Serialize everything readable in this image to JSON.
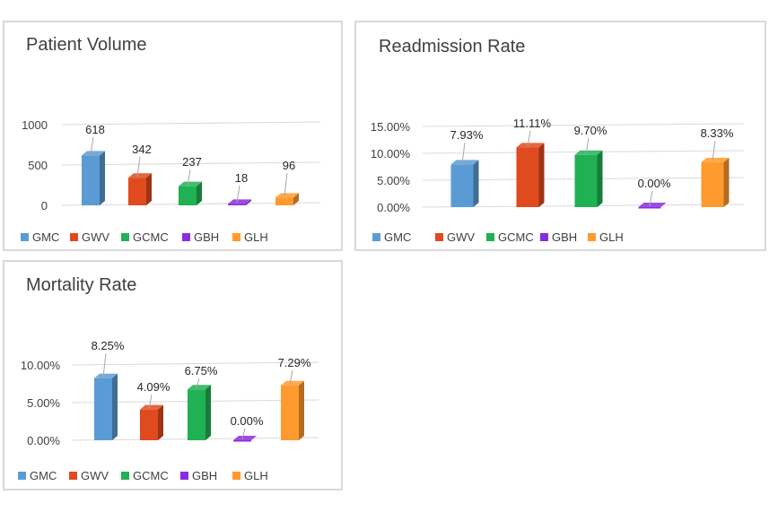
{
  "chart_data": [
    {
      "type": "bar",
      "title": "Patient Volume",
      "categories": [
        "GMC",
        "GWV",
        "GCMC",
        "GBH",
        "GLH"
      ],
      "values": [
        618,
        342,
        237,
        18,
        96
      ],
      "data_labels": [
        "618",
        "342",
        "237",
        "18",
        "96"
      ],
      "yticks": [
        "1000",
        "500",
        "0"
      ],
      "ylim": [
        0,
        1000
      ],
      "grid": true,
      "legend": "bottom"
    },
    {
      "type": "bar",
      "title": "Readmission Rate",
      "categories": [
        "GMC",
        "GWV",
        "GCMC",
        "GBH",
        "GLH"
      ],
      "values": [
        7.93,
        11.11,
        9.7,
        0.0,
        8.33
      ],
      "data_labels": [
        "7.93%",
        "11.11%",
        "9.70%",
        "0.00%",
        "8.33%"
      ],
      "yticks": [
        "15.00%",
        "10.00%",
        "5.00%",
        "0.00%"
      ],
      "ylim": [
        0,
        15
      ],
      "grid": true,
      "legend": "bottom"
    },
    {
      "type": "bar",
      "title": "Mortality Rate",
      "categories": [
        "GMC",
        "GWV",
        "GCMC",
        "GBH",
        "GLH"
      ],
      "values": [
        8.25,
        4.09,
        6.75,
        0.0,
        7.29
      ],
      "data_labels": [
        "8.25%",
        "4.09%",
        "6.75%",
        "0.00%",
        "7.29%"
      ],
      "yticks": [
        "10.00%",
        "5.00%",
        "0.00%"
      ],
      "ylim": [
        0,
        10
      ],
      "grid": true,
      "legend": "bottom"
    }
  ],
  "colors": [
    "#5b9bd5",
    "#e04a1f",
    "#1fb153",
    "#8a2be2",
    "#ff9a2e"
  ]
}
